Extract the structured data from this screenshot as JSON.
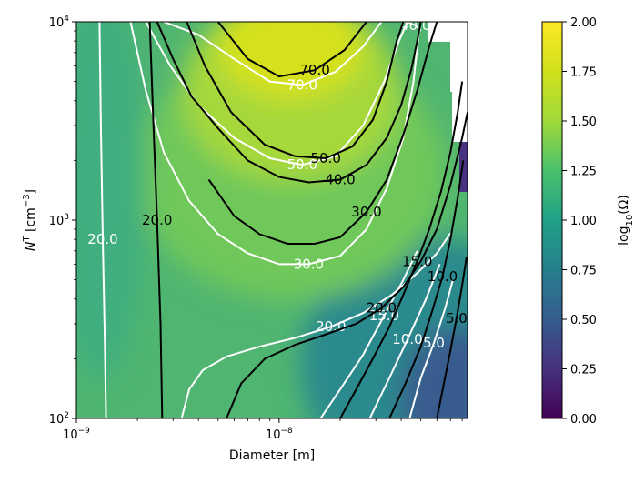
{
  "chart_data": {
    "type": "heatmap",
    "title": "",
    "xlabel": "Diameter [m]",
    "ylabel_main": "N",
    "ylabel_sup": "T",
    "ylabel_unit_open": " [cm",
    "ylabel_unit_sup": "−3",
    "ylabel_unit_close": "]",
    "x_scale": "log",
    "y_scale": "log",
    "xlim": [
      1e-09,
      8.5e-08
    ],
    "ylim": [
      100,
      10000
    ],
    "x_ticks": [
      {
        "value": 1e-09,
        "base": "10",
        "exp": "−9"
      },
      {
        "value": 1e-08,
        "base": "10",
        "exp": "−8"
      }
    ],
    "y_ticks": [
      {
        "value": 100,
        "base": "10",
        "exp": "2"
      },
      {
        "value": 1000,
        "base": "10",
        "exp": "3"
      },
      {
        "value": 10000,
        "base": "10",
        "exp": "4"
      }
    ],
    "colormap": "viridis",
    "colorbar": {
      "label_main": "log",
      "label_sub": "10",
      "label_rest": "(Ω)",
      "range": [
        0,
        2
      ],
      "ticks": [
        "0.00",
        "0.25",
        "0.50",
        "0.75",
        "1.00",
        "1.25",
        "1.50",
        "1.75",
        "2.00"
      ]
    },
    "contours": [
      {
        "color": "#ffffff",
        "level": "70.0",
        "label": "70.0",
        "points": [
          [
            2.7e-09,
            10000
          ],
          [
            4e-09,
            8600
          ],
          [
            6e-09,
            6500
          ],
          [
            9e-09,
            5000
          ],
          [
            1.3e-08,
            4800
          ],
          [
            1.9e-08,
            5600
          ],
          [
            2.6e-08,
            7500
          ],
          [
            3.2e-08,
            10000
          ]
        ]
      },
      {
        "color": "#ffffff",
        "level": "50.0",
        "label": "50.0",
        "points": [
          [
            2.2e-09,
            10000
          ],
          [
            2.9e-09,
            6000
          ],
          [
            4e-09,
            3800
          ],
          [
            6e-09,
            2600
          ],
          [
            9e-09,
            2050
          ],
          [
            1.3e-08,
            1900
          ],
          [
            1.9e-08,
            2100
          ],
          [
            2.6e-08,
            3000
          ],
          [
            3.3e-08,
            5000
          ],
          [
            3.9e-08,
            8000
          ],
          [
            4.3e-08,
            10000
          ]
        ]
      },
      {
        "color": "#ffffff",
        "level": "40.0",
        "label": "40.0",
        "points": [
          [
            4.3e-08,
            10000
          ],
          [
            4.7e-08,
            9600
          ],
          [
            5e-08,
            9000
          ]
        ]
      },
      {
        "color": "#ffffff",
        "level": "30.0",
        "label": "30.0",
        "points": [
          [
            1.85e-09,
            10000
          ],
          [
            2.2e-09,
            4500
          ],
          [
            2.7e-09,
            2200
          ],
          [
            3.6e-09,
            1250
          ],
          [
            5e-09,
            850
          ],
          [
            7e-09,
            680
          ],
          [
            1e-08,
            600
          ],
          [
            1.4e-08,
            600
          ],
          [
            2e-08,
            660
          ],
          [
            2.7e-08,
            900
          ],
          [
            3.4e-08,
            1450
          ],
          [
            4.1e-08,
            2600
          ],
          [
            4.6e-08,
            5000
          ],
          [
            4.9e-08,
            9000
          ]
        ]
      },
      {
        "color": "#ffffff",
        "level": "20.0",
        "label": "20.0",
        "points": [
          [
            1.3e-09,
            10000
          ],
          [
            1.32e-09,
            3000
          ],
          [
            1.35e-09,
            800
          ],
          [
            1.38e-09,
            250
          ],
          [
            1.4e-09,
            100
          ]
        ]
      },
      {
        "color": "#ffffff",
        "level": "20.0",
        "label": "20.0",
        "points": [
          [
            3.3e-09,
            100
          ],
          [
            3.6e-09,
            140
          ],
          [
            4.2e-09,
            175
          ],
          [
            5.5e-09,
            205
          ],
          [
            8e-09,
            230
          ],
          [
            1.2e-08,
            255
          ],
          [
            1.8e-08,
            290
          ],
          [
            2.6e-08,
            340
          ],
          [
            3.6e-08,
            420
          ],
          [
            4.8e-08,
            540
          ],
          [
            6e-08,
            680
          ],
          [
            7e-08,
            860
          ]
        ]
      },
      {
        "color": "#ffffff",
        "level": "15.0",
        "label": "15.0",
        "points": [
          [
            1.6e-08,
            100
          ],
          [
            2e-08,
            140
          ],
          [
            2.6e-08,
            210
          ],
          [
            3.3e-08,
            330
          ],
          [
            4.1e-08,
            500
          ],
          [
            4.8e-08,
            700
          ]
        ]
      },
      {
        "color": "#ffffff",
        "level": "10.0",
        "label": "10.0",
        "points": [
          [
            2.8e-08,
            100
          ],
          [
            3.5e-08,
            160
          ],
          [
            4.3e-08,
            250
          ],
          [
            5.3e-08,
            400
          ],
          [
            6.2e-08,
            600
          ]
        ]
      },
      {
        "color": "#ffffff",
        "level": "5.0",
        "label": "5.0",
        "points": [
          [
            4.4e-08,
            100
          ],
          [
            5e-08,
            160
          ],
          [
            5.8e-08,
            240
          ],
          [
            6.6e-08,
            360
          ],
          [
            7.2e-08,
            500
          ]
        ]
      },
      {
        "color": "#000000",
        "level": "70.0",
        "label": "70.0",
        "points": [
          [
            5e-09,
            10000
          ],
          [
            7e-09,
            6500
          ],
          [
            1e-08,
            5300
          ],
          [
            1.5e-08,
            5700
          ],
          [
            2.1e-08,
            7200
          ],
          [
            2.7e-08,
            10000
          ]
        ]
      },
      {
        "color": "#000000",
        "level": "50.0",
        "label": "50.0",
        "points": [
          [
            3.5e-09,
            10000
          ],
          [
            4.3e-09,
            6000
          ],
          [
            5.8e-09,
            3500
          ],
          [
            8.5e-09,
            2400
          ],
          [
            1.2e-08,
            2100
          ],
          [
            1.7e-08,
            2050
          ],
          [
            2.3e-08,
            2350
          ],
          [
            2.9e-08,
            3200
          ],
          [
            3.4e-08,
            5000
          ],
          [
            3.8e-08,
            8000
          ],
          [
            4.1e-08,
            10000
          ]
        ]
      },
      {
        "color": "#000000",
        "level": "40.0",
        "label": "40.0",
        "points": [
          [
            2.5e-09,
            10000
          ],
          [
            3e-09,
            6500
          ],
          [
            3.7e-09,
            4200
          ],
          [
            5e-09,
            2900
          ],
          [
            7e-09,
            2000
          ],
          [
            1e-08,
            1650
          ],
          [
            1.4e-08,
            1550
          ],
          [
            2e-08,
            1600
          ],
          [
            2.7e-08,
            1900
          ],
          [
            3.4e-08,
            2600
          ],
          [
            4e-08,
            3800
          ],
          [
            4.5e-08,
            5800
          ],
          [
            4.8e-08,
            8000
          ],
          [
            5e-08,
            10000
          ]
        ]
      },
      {
        "color": "#000000",
        "level": "30.0",
        "label": "30.0",
        "points": [
          [
            4.5e-09,
            1600
          ],
          [
            6e-09,
            1050
          ],
          [
            8e-09,
            850
          ],
          [
            1.1e-08,
            760
          ],
          [
            1.5e-08,
            760
          ],
          [
            2e-08,
            820
          ],
          [
            2.7e-08,
            1100
          ],
          [
            3.4e-08,
            1600
          ],
          [
            4.1e-08,
            2700
          ],
          [
            4.8e-08,
            4500
          ],
          [
            5.5e-08,
            7500
          ],
          [
            6e-08,
            10000
          ]
        ]
      },
      {
        "color": "#000000",
        "level": "20.0",
        "label": "20.0",
        "points": [
          [
            2.3e-09,
            10000
          ],
          [
            2.4e-09,
            3000
          ],
          [
            2.5e-09,
            1000
          ],
          [
            2.6e-09,
            300
          ],
          [
            2.65e-09,
            100
          ]
        ]
      },
      {
        "color": "#000000",
        "level": "20.0",
        "label": "20.0",
        "points": [
          [
            5.5e-09,
            100
          ],
          [
            6.5e-09,
            150
          ],
          [
            8.5e-09,
            200
          ],
          [
            1.2e-08,
            235
          ],
          [
            1.7e-08,
            265
          ],
          [
            2.4e-08,
            300
          ],
          [
            3.2e-08,
            360
          ],
          [
            4.1e-08,
            460
          ],
          [
            5e-08,
            620
          ],
          [
            6e-08,
            900
          ],
          [
            7e-08,
            1500
          ],
          [
            8e-08,
            2600
          ],
          [
            8.5e-08,
            3500
          ]
        ]
      },
      {
        "color": "#000000",
        "level": "15.0",
        "label": "15.0",
        "points": [
          [
            2e-08,
            100
          ],
          [
            2.4e-08,
            140
          ],
          [
            2.9e-08,
            200
          ],
          [
            3.5e-08,
            290
          ],
          [
            4.1e-08,
            420
          ],
          [
            4.8e-08,
            620
          ],
          [
            5.5e-08,
            900
          ],
          [
            6.3e-08,
            1400
          ],
          [
            7e-08,
            2200
          ],
          [
            7.6e-08,
            3500
          ],
          [
            8e-08,
            5000
          ]
        ]
      },
      {
        "color": "#000000",
        "level": "10.0",
        "label": "10.0",
        "points": [
          [
            3.5e-08,
            100
          ],
          [
            4.2e-08,
            150
          ],
          [
            5e-08,
            230
          ],
          [
            5.7e-08,
            350
          ],
          [
            6.4e-08,
            520
          ],
          [
            7e-08,
            800
          ],
          [
            7.6e-08,
            1300
          ],
          [
            8.1e-08,
            2000
          ]
        ]
      },
      {
        "color": "#000000",
        "level": "5.0",
        "label": "5.0",
        "points": [
          [
            6e-08,
            100
          ],
          [
            6.5e-08,
            150
          ],
          [
            7e-08,
            220
          ],
          [
            7.5e-08,
            320
          ],
          [
            8e-08,
            470
          ],
          [
            8.4e-08,
            650
          ]
        ]
      }
    ]
  }
}
